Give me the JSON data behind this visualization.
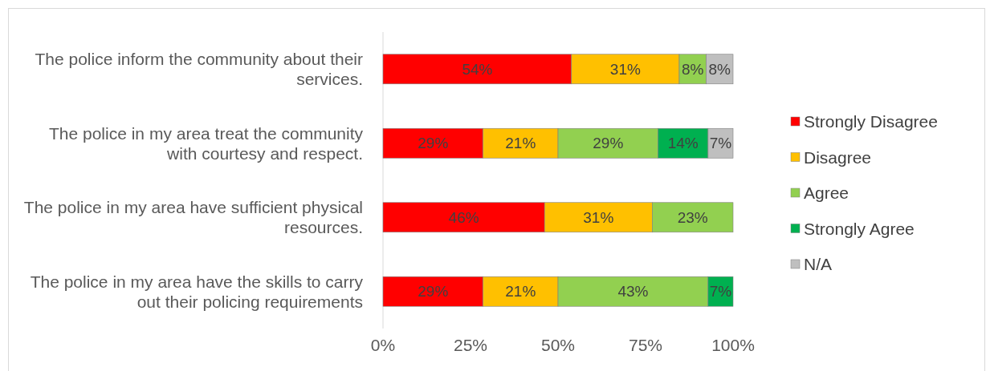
{
  "chart_data": {
    "type": "bar",
    "orientation": "horizontal",
    "stacked": true,
    "categories": [
      "The police inform the community about their services.",
      "The police in my area treat the community with courtesy and respect.",
      "The police in my area have sufficient physical resources.",
      "The police in my area have the skills to carry out their policing requirements"
    ],
    "series": [
      {
        "name": "Strongly Disagree",
        "color": "#ff0000",
        "values": [
          53.85,
          28.57,
          46.15,
          28.57
        ],
        "value_labels": [
          "54%",
          "29%",
          "46%",
          "29%"
        ]
      },
      {
        "name": "Disagree",
        "color": "#ffc000",
        "values": [
          30.77,
          21.43,
          30.77,
          21.43
        ],
        "value_labels": [
          "31%",
          "21%",
          "31%",
          "21%"
        ]
      },
      {
        "name": "Agree",
        "color": "#92d050",
        "values": [
          7.69,
          28.57,
          23.08,
          42.86
        ],
        "value_labels": [
          "8%",
          "29%",
          "23%",
          "43%"
        ]
      },
      {
        "name": "Strongly Agree",
        "color": "#00b050",
        "values": [
          null,
          14.29,
          null,
          7.14
        ],
        "value_labels": [
          null,
          "14%",
          null,
          "7%"
        ]
      },
      {
        "name": "N/A",
        "color": "#bfbfbf",
        "values": [
          7.69,
          7.14,
          null,
          null
        ],
        "value_labels": [
          "8%",
          "7%",
          null,
          null
        ]
      }
    ],
    "xlim": [
      0,
      100
    ],
    "xticks": [
      {
        "value": 0,
        "label": "0%"
      },
      {
        "value": 25,
        "label": "25%"
      },
      {
        "value": 50,
        "label": "50%"
      },
      {
        "value": 75,
        "label": "75%"
      },
      {
        "value": 100,
        "label": "100%"
      }
    ],
    "legend": "right"
  }
}
